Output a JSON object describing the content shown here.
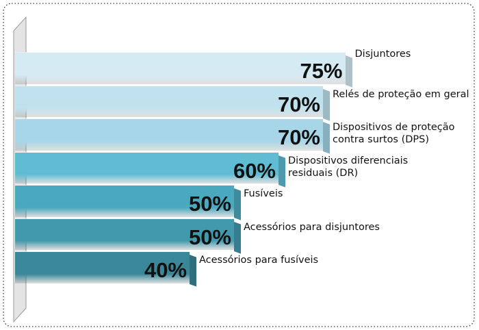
{
  "chart_data": {
    "type": "bar",
    "orientation": "horizontal",
    "categories": [
      "Disjuntores",
      "Relés de proteção em geral",
      "Dispositivos de proteção\ncontra surtos (DPS)",
      "Dispositivos diferenciais\nresiduais (DR)",
      "Fusíveis",
      "Acessórios para disjuntores",
      "Acessórios para fusíveis"
    ],
    "values": [
      75,
      70,
      70,
      60,
      50,
      50,
      40
    ],
    "value_labels": [
      "75%",
      "70%",
      "70%",
      "60%",
      "50%",
      "50%",
      "40%"
    ],
    "colors": [
      "#d4ebf4",
      "#c0e2ef",
      "#a6d6e8",
      "#5fbcd3",
      "#4aa9bf",
      "#4299ae",
      "#3a8799"
    ]
  }
}
